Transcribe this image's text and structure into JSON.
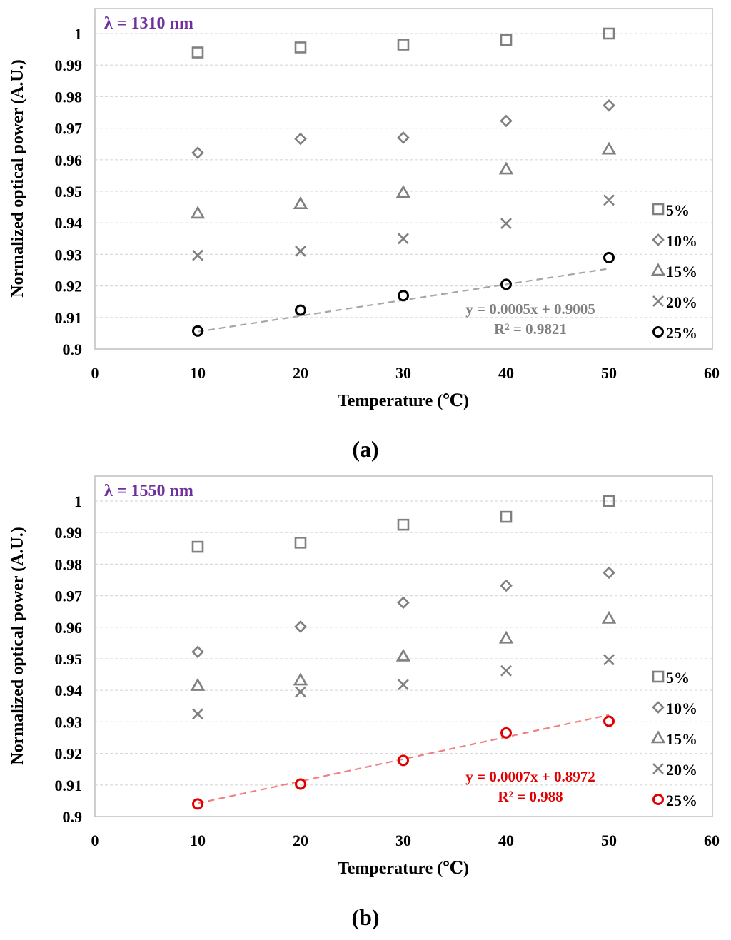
{
  "colors": {
    "marker_gray": "#808080",
    "grid": "#d9d9d9",
    "frame": "#bfbfbf",
    "purple": "#7030a0",
    "trend_gray": "#a6a6a6",
    "trend_text_gray": "#808080",
    "red": "#e00000",
    "trend_red": "#f08080",
    "black": "#000000"
  },
  "chart_data": [
    {
      "type": "scatter",
      "panel_label": "(a)",
      "wavelength_label": "λ = 1310 nm",
      "xlabel": "Temperature (℃)",
      "ylabel": "Normalized optical power (A.U.)",
      "xlim": [
        0,
        60
      ],
      "ylim": [
        0.9,
        1.0
      ],
      "x_ticks": [
        "0",
        "10",
        "20",
        "30",
        "40",
        "50",
        "60"
      ],
      "y_ticks": [
        "0.9",
        "0.91",
        "0.92",
        "0.93",
        "0.94",
        "0.95",
        "0.96",
        "0.97",
        "0.98",
        "0.99",
        "1"
      ],
      "grid": "horizontal",
      "legend_position": "right",
      "x": [
        10,
        20,
        30,
        40,
        50
      ],
      "series": [
        {
          "name": "5%",
          "marker": "square",
          "values": [
            0.994,
            0.9956,
            0.9965,
            0.998,
            1.0
          ]
        },
        {
          "name": "10%",
          "marker": "diamond",
          "values": [
            0.9622,
            0.9666,
            0.967,
            0.9723,
            0.9772
          ]
        },
        {
          "name": "15%",
          "marker": "triangle",
          "values": [
            0.943,
            0.946,
            0.9496,
            0.957,
            0.9633
          ]
        },
        {
          "name": "20%",
          "marker": "x",
          "values": [
            0.9297,
            0.931,
            0.935,
            0.9398,
            0.9472
          ]
        },
        {
          "name": "25%",
          "marker": "circle",
          "values": [
            0.9057,
            0.9123,
            0.9169,
            0.9205,
            0.929
          ]
        }
      ],
      "trendline": {
        "series": "25%",
        "slope": 0.0005,
        "intercept": 0.9005,
        "x_range": [
          10,
          50
        ],
        "equation": "y = 0.0005x + 0.9005",
        "r_squared": "R² = 0.9821"
      }
    },
    {
      "type": "scatter",
      "panel_label": "(b)",
      "wavelength_label": "λ = 1550 nm",
      "xlabel": "Temperature (℃)",
      "ylabel": "Normalized optical power (A.U.)",
      "xlim": [
        0,
        60
      ],
      "ylim": [
        0.9,
        1.0
      ],
      "x_ticks": [
        "0",
        "10",
        "20",
        "30",
        "40",
        "50",
        "60"
      ],
      "y_ticks": [
        "0.9",
        "0.91",
        "0.92",
        "0.93",
        "0.94",
        "0.95",
        "0.96",
        "0.97",
        "0.98",
        "0.99",
        "1"
      ],
      "grid": "horizontal",
      "legend_position": "right",
      "x": [
        10,
        20,
        30,
        40,
        50
      ],
      "series": [
        {
          "name": "5%",
          "marker": "square",
          "values": [
            0.9855,
            0.9868,
            0.9925,
            0.995,
            1.0
          ]
        },
        {
          "name": "10%",
          "marker": "diamond",
          "values": [
            0.9522,
            0.9602,
            0.9678,
            0.9732,
            0.9773
          ]
        },
        {
          "name": "15%",
          "marker": "triangle",
          "values": [
            0.9415,
            0.9432,
            0.9508,
            0.9565,
            0.9628
          ]
        },
        {
          "name": "20%",
          "marker": "x",
          "values": [
            0.9325,
            0.9395,
            0.9418,
            0.9462,
            0.9497
          ]
        },
        {
          "name": "25%",
          "marker": "circle",
          "values": [
            0.904,
            0.9103,
            0.9178,
            0.9265,
            0.9302
          ]
        }
      ],
      "trendline": {
        "series": "25%",
        "slope": 0.0007,
        "intercept": 0.8972,
        "x_range": [
          10,
          50
        ],
        "equation": "y = 0.0007x + 0.8972",
        "r_squared": "R² = 0.988"
      }
    }
  ]
}
